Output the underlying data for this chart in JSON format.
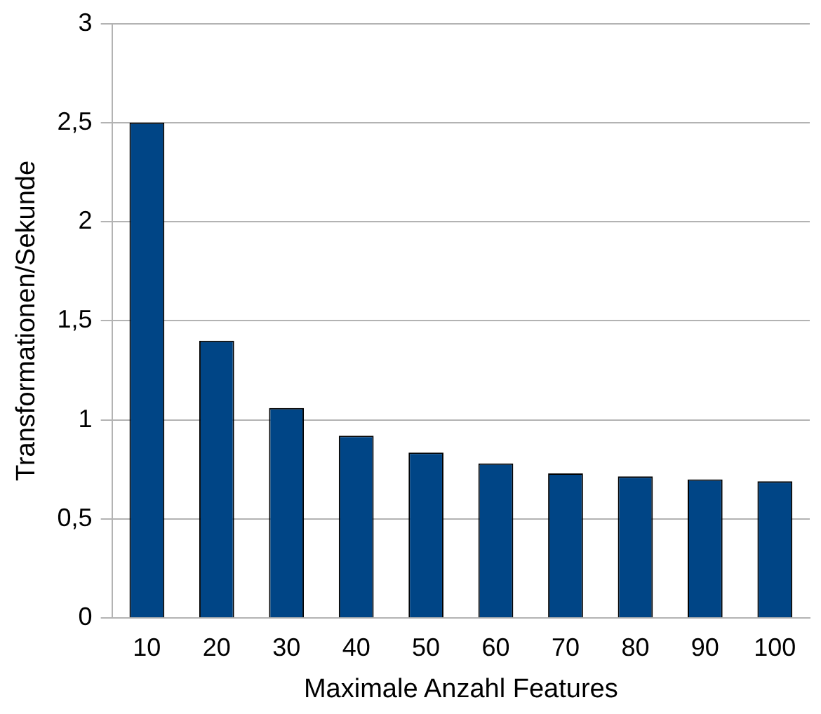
{
  "chart_data": {
    "type": "bar",
    "xlabel": "Maximale Anzahl Features",
    "ylabel": "Transformationen/Sekunde",
    "categories": [
      "10",
      "20",
      "30",
      "40",
      "50",
      "60",
      "70",
      "80",
      "90",
      "100"
    ],
    "values": [
      2.5,
      1.4,
      1.06,
      0.92,
      0.835,
      0.78,
      0.73,
      0.715,
      0.7,
      0.69
    ],
    "color": "#004586",
    "ylim": [
      0,
      3
    ],
    "yticks": [
      0,
      {
        "value": 0.5,
        "label": "0,5"
      },
      1,
      {
        "value": 1.5,
        "label": "1,5"
      },
      2,
      {
        "value": 2.5,
        "label": "2,5"
      },
      3
    ],
    "grid": "y",
    "legend": false
  }
}
